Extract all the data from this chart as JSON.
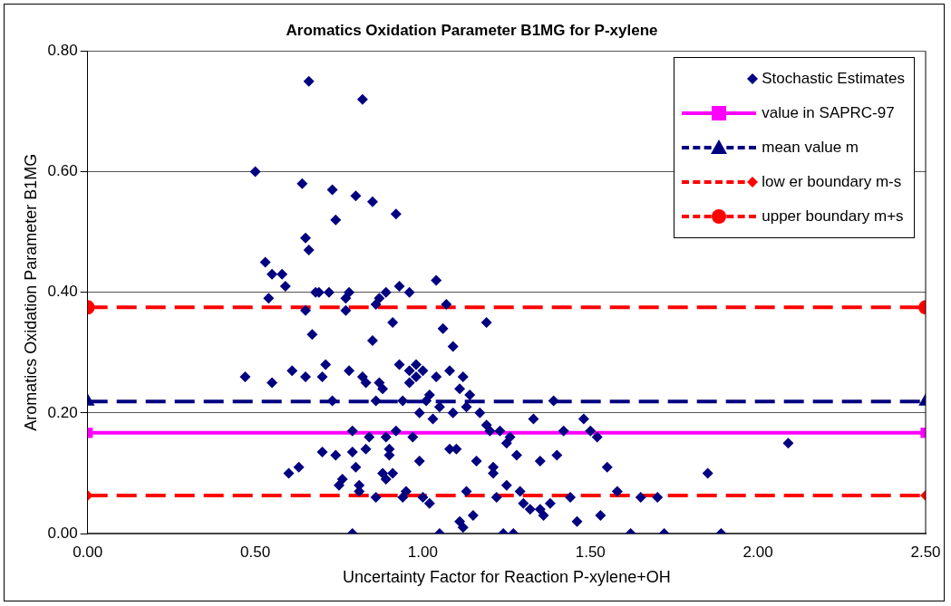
{
  "chart_data": {
    "type": "scatter",
    "title": "Aromatics Oxidation Parameter B1MG for P-xylene",
    "xlabel": "Uncertainty Factor for Reaction P-xylene+OH",
    "ylabel": "Aromatics Oxidation Parameter B1MG",
    "xlim": [
      0,
      2.5
    ],
    "xticks": [
      {
        "value": 0,
        "label": "0.00"
      },
      {
        "value": 0.5,
        "label": "0.50"
      },
      {
        "value": 1,
        "label": "1.00"
      },
      {
        "value": 1.5,
        "label": "1.50"
      },
      {
        "value": 2,
        "label": "2.00"
      },
      {
        "value": 2.5,
        "label": "2.50"
      }
    ],
    "ylim": [
      0,
      0.8
    ],
    "yticks": [
      {
        "value": 0,
        "label": "0.00"
      },
      {
        "value": 0.2,
        "label": "0.20"
      },
      {
        "value": 0.4,
        "label": "0.40"
      },
      {
        "value": 0.6,
        "label": "0.60"
      },
      {
        "value": 0.8,
        "label": "0.80"
      }
    ],
    "grid": "y",
    "legend": "top right",
    "series": [
      {
        "name": "Stochastic Estimates",
        "marker": "diamond",
        "color": "#000080",
        "x": [
          0.47,
          0.5,
          0.53,
          0.54,
          0.55,
          0.55,
          0.58,
          0.59,
          0.6,
          0.61,
          0.63,
          0.64,
          0.65,
          0.66,
          0.66,
          0.65,
          0.65,
          0.67,
          0.68,
          0.69,
          0.7,
          0.7,
          0.71,
          0.72,
          0.73,
          0.73,
          0.74,
          0.74,
          0.75,
          0.76,
          0.77,
          0.77,
          0.78,
          0.78,
          0.79,
          0.79,
          0.8,
          0.8,
          0.81,
          0.81,
          0.79,
          0.82,
          0.82,
          0.83,
          0.83,
          0.84,
          0.85,
          0.85,
          0.86,
          0.86,
          0.86,
          0.87,
          0.87,
          0.88,
          0.88,
          0.89,
          0.89,
          0.89,
          0.9,
          0.9,
          0.91,
          0.91,
          0.92,
          0.92,
          0.93,
          0.93,
          0.94,
          0.94,
          0.95,
          0.96,
          0.96,
          0.96,
          0.97,
          0.98,
          0.98,
          0.99,
          0.99,
          1.0,
          1.0,
          1.01,
          1.02,
          1.02,
          1.03,
          1.04,
          1.04,
          1.05,
          1.05,
          1.06,
          1.07,
          1.08,
          1.08,
          1.09,
          1.09,
          1.1,
          1.11,
          1.11,
          1.12,
          1.12,
          1.13,
          1.13,
          1.14,
          1.15,
          1.16,
          1.17,
          1.19,
          1.19,
          1.2,
          1.21,
          1.21,
          1.22,
          1.23,
          1.24,
          1.25,
          1.25,
          1.26,
          1.27,
          1.28,
          1.29,
          1.3,
          1.32,
          1.33,
          1.35,
          1.35,
          1.36,
          1.38,
          1.39,
          1.4,
          1.42,
          1.44,
          1.46,
          1.48,
          1.5,
          1.52,
          1.53,
          1.55,
          1.58,
          1.62,
          1.65,
          1.7,
          1.72,
          1.85,
          1.89,
          2.09
        ],
        "values": [
          0.26,
          0.6,
          0.45,
          0.39,
          0.25,
          0.43,
          0.43,
          0.41,
          0.1,
          0.27,
          0.11,
          0.58,
          0.49,
          0.75,
          0.47,
          0.37,
          0.26,
          0.33,
          0.4,
          0.4,
          0.26,
          0.135,
          0.28,
          0.4,
          0.22,
          0.57,
          0.13,
          0.52,
          0.08,
          0.09,
          0.39,
          0.37,
          0.4,
          0.27,
          0.17,
          0.135,
          0.11,
          0.56,
          0.08,
          0.07,
          0.0,
          0.72,
          0.26,
          0.25,
          0.14,
          0.16,
          0.55,
          0.32,
          0.38,
          0.22,
          0.06,
          0.39,
          0.25,
          0.24,
          0.1,
          0.09,
          0.4,
          0.16,
          0.14,
          0.13,
          0.35,
          0.1,
          0.17,
          0.53,
          0.41,
          0.28,
          0.22,
          0.06,
          0.07,
          0.4,
          0.27,
          0.25,
          0.16,
          0.28,
          0.26,
          0.2,
          0.12,
          0.27,
          0.06,
          0.22,
          0.05,
          0.23,
          0.19,
          0.42,
          0.26,
          0.0,
          0.21,
          0.34,
          0.38,
          0.14,
          0.27,
          0.31,
          0.2,
          0.14,
          0.24,
          0.02,
          0.01,
          0.26,
          0.07,
          0.21,
          0.23,
          0.03,
          0.12,
          0.2,
          0.35,
          0.18,
          0.17,
          0.11,
          0.1,
          0.06,
          0.17,
          0.0,
          0.15,
          0.08,
          0.16,
          0.0,
          0.13,
          0.07,
          0.05,
          0.04,
          0.19,
          0.12,
          0.04,
          0.03,
          0.05,
          0.22,
          0.13,
          0.17,
          0.06,
          0.02,
          0.19,
          0.17,
          0.16,
          0.03,
          0.11,
          0.07,
          0.0,
          0.06,
          0.06,
          0.0,
          0.1,
          0.0,
          0.15
        ]
      },
      {
        "name": "value in SAPRC-97",
        "type": "line",
        "marker": "square",
        "line_style": "solid",
        "color": "#ff00ff",
        "x": [
          0,
          2.5
        ],
        "values": [
          0.167,
          0.167
        ]
      },
      {
        "name": "mean value m",
        "type": "line",
        "marker": "triangle",
        "line_style": "dashed",
        "color": "#000080",
        "x": [
          0,
          2.5
        ],
        "values": [
          0.219,
          0.219
        ]
      },
      {
        "name": "low er boundary m-s",
        "type": "line",
        "marker": "diamond",
        "line_style": "dashed",
        "color": "#ff0000",
        "x": [
          0,
          2.5
        ],
        "values": [
          0.063,
          0.063
        ]
      },
      {
        "name": "upper boundary m+s",
        "type": "line",
        "marker": "circle",
        "line_style": "dashed",
        "color": "#ff0000",
        "x": [
          0,
          2.5
        ],
        "values": [
          0.375,
          0.375
        ]
      }
    ]
  }
}
